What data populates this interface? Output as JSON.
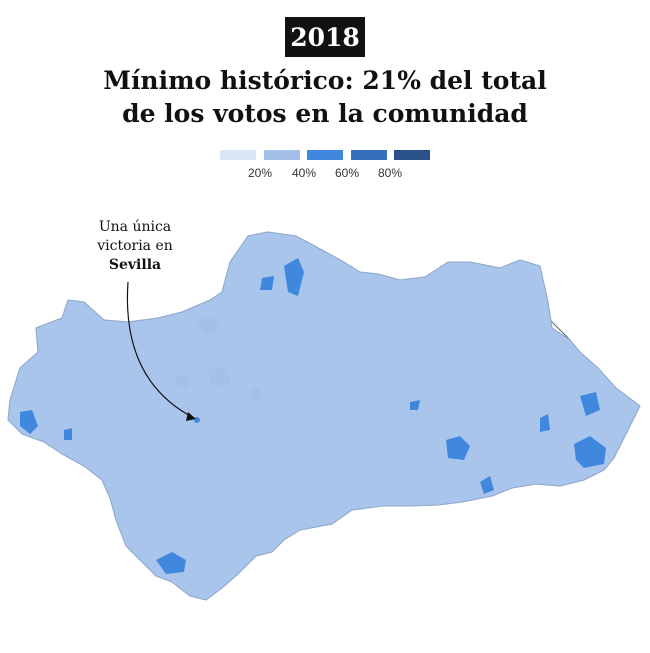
{
  "header": {
    "year": "2018",
    "title_line1": "Mínimo histórico: 21% del total",
    "title_line2": "de los votos en la comunidad"
  },
  "legend": {
    "colors": [
      "#dae6f6",
      "#a2c0ea",
      "#3f88de",
      "#3570bd",
      "#2a5188"
    ],
    "ticks": [
      "20%",
      "40%",
      "60%",
      "80%"
    ]
  },
  "annotation": {
    "line1": "Una única",
    "line2": "victoria en",
    "place": "Sevilla"
  },
  "map": {
    "base_color": "#a9c5ec",
    "light_color": "#e3ecf8",
    "highlight_color": "#cfd4dc",
    "border_color": "#ffffff",
    "province_border_color": "#555555"
  }
}
